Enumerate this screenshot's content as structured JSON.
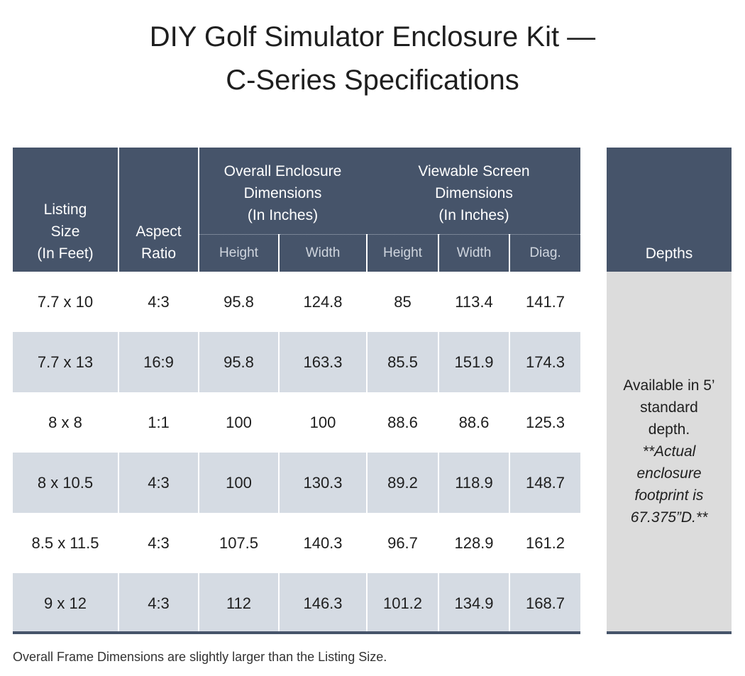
{
  "title": [
    "DIY Golf Simulator Enclosure Kit —",
    "C-Series Specifications"
  ],
  "table": {
    "header": {
      "listing": [
        "Listing",
        "Size",
        "(In Feet)"
      ],
      "aspect": [
        "Aspect",
        "Ratio"
      ],
      "overall": [
        "Overall Enclosure",
        "Dimensions",
        "(In Inches)"
      ],
      "viewable": [
        "Viewable Screen",
        "Dimensions",
        "(In Inches)"
      ],
      "subheaders": [
        "Height",
        "Width",
        "Height",
        "Width",
        "Diag."
      ]
    },
    "rows": [
      [
        "7.7 x 10",
        "4:3",
        "95.8",
        "124.8",
        "85",
        "113.4",
        "141.7"
      ],
      [
        "7.7 x 13",
        "16:9",
        "95.8",
        "163.3",
        "85.5",
        "151.9",
        "174.3"
      ],
      [
        "8 x 8",
        "1:1",
        "100",
        "100",
        "88.6",
        "88.6",
        "125.3"
      ],
      [
        "8 x 10.5",
        "4:3",
        "100",
        "130.3",
        "89.2",
        "118.9",
        "148.7"
      ],
      [
        "8.5 x 11.5",
        "4:3",
        "107.5",
        "140.3",
        "96.7",
        "128.9",
        "161.2"
      ],
      [
        "9 x 12",
        "4:3",
        "112",
        "146.3",
        "101.2",
        "134.9",
        "168.7"
      ]
    ]
  },
  "depths": {
    "header": "Depths",
    "note": "Available in 5’ standard depth.",
    "note_italic": "**Actual enclosure footprint is 67.375”D.**"
  },
  "footer": "Overall Frame Dimensions are slightly larger than the Listing Size."
}
